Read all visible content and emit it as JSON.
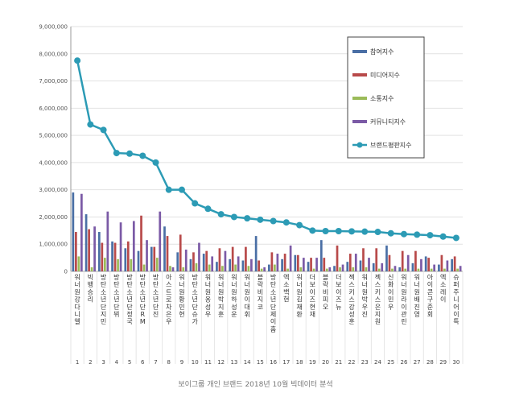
{
  "caption": "보이그룹 개인 브랜드 2018년 10월 빅데이터 분석",
  "chart_data": {
    "type": "bar",
    "title": "",
    "xlabel": "",
    "ylabel": "",
    "ylim": [
      0,
      9000000
    ],
    "yticks": [
      0,
      1000000,
      2000000,
      3000000,
      4000000,
      5000000,
      6000000,
      7000000,
      8000000,
      9000000
    ],
    "ytick_labels": [
      "0",
      "1,000,000",
      "2,000,000",
      "3,000,000",
      "4,000,000",
      "5,000,000",
      "6,000,000",
      "7,000,000",
      "8,000,000",
      "9,000,000"
    ],
    "grid": true,
    "legend_position": "top-right",
    "categories": [
      "워너원 강다니엘",
      "빅뱅 승리",
      "방탄소년단 지민",
      "방탄소년단 뷔",
      "방탄소년단 정국",
      "방탄소년단 RM",
      "방탄소년단 진",
      "아스트로 차은우",
      "워너원 황민현",
      "방탄소년단 슈가",
      "워너원 옹성우",
      "워너원 박지훈",
      "워너원 하성운",
      "워너원 이대휘",
      "블락비 지코",
      "방탄소년단 제이홉",
      "엑소 백현",
      "워너원 김재환",
      "더보이즈 현재",
      "블락비 피오",
      "더보이즈 뉴",
      "젝스키스 강성훈",
      "워너원 박우진",
      "젝스키스 은지원",
      "신화 이민우",
      "워너원 라이관린",
      "워너원 배진영",
      "아이콘 구준회",
      "엑소 레이",
      "슈퍼주니어 이특"
    ],
    "numbers": [
      "1",
      "2",
      "3",
      "4",
      "5",
      "6",
      "7",
      "8",
      "9",
      "10",
      "11",
      "12",
      "13",
      "14",
      "15",
      "16",
      "17",
      "18",
      "19",
      "20",
      "21",
      "22",
      "23",
      "24",
      "25",
      "26",
      "27",
      "28",
      "29",
      "30"
    ],
    "series": [
      {
        "name": "참여지수",
        "type": "bar",
        "color": "#4a6fa5",
        "values": [
          2900000,
          2100000,
          1450000,
          1100000,
          850000,
          750000,
          900000,
          1650000,
          700000,
          450000,
          650000,
          350000,
          450000,
          400000,
          1300000,
          250000,
          450000,
          600000,
          350000,
          1150000,
          200000,
          350000,
          400000,
          300000,
          950000,
          150000,
          300000,
          550000,
          250000,
          450000
        ]
      },
      {
        "name": "미디어지수",
        "type": "bar",
        "color": "#b84a4a",
        "values": [
          1450000,
          1550000,
          1050000,
          1050000,
          1100000,
          2050000,
          900000,
          1300000,
          1350000,
          700000,
          750000,
          850000,
          900000,
          900000,
          400000,
          700000,
          650000,
          600000,
          500000,
          500000,
          950000,
          650000,
          850000,
          850000,
          600000,
          750000,
          750000,
          500000,
          600000,
          550000
        ]
      },
      {
        "name": "소통지수",
        "type": "bar",
        "color": "#9bbb59",
        "values": [
          550000,
          150000,
          500000,
          450000,
          450000,
          250000,
          500000,
          200000,
          150000,
          300000,
          250000,
          200000,
          250000,
          200000,
          100000,
          250000,
          100000,
          150000,
          100000,
          100000,
          150000,
          150000,
          150000,
          100000,
          100000,
          100000,
          100000,
          100000,
          100000,
          100000
        ]
      },
      {
        "name": "커뮤니티지수",
        "type": "bar",
        "color": "#7b5aa6",
        "values": [
          2850000,
          1650000,
          2200000,
          1800000,
          1850000,
          1150000,
          2200000,
          150000,
          800000,
          1050000,
          550000,
          750000,
          550000,
          450000,
          150000,
          650000,
          950000,
          500000,
          500000,
          150000,
          250000,
          650000,
          500000,
          300000,
          200000,
          600000,
          450000,
          250000,
          400000,
          200000
        ]
      },
      {
        "name": "브랜드평판지수",
        "type": "line",
        "color": "#2c9bb5",
        "values": [
          7750000,
          5400000,
          5200000,
          4350000,
          4330000,
          4250000,
          4000000,
          3000000,
          3000000,
          2500000,
          2300000,
          2100000,
          2000000,
          1950000,
          1900000,
          1850000,
          1800000,
          1700000,
          1500000,
          1480000,
          1480000,
          1470000,
          1460000,
          1450000,
          1400000,
          1370000,
          1350000,
          1330000,
          1280000,
          1230000
        ]
      }
    ]
  }
}
